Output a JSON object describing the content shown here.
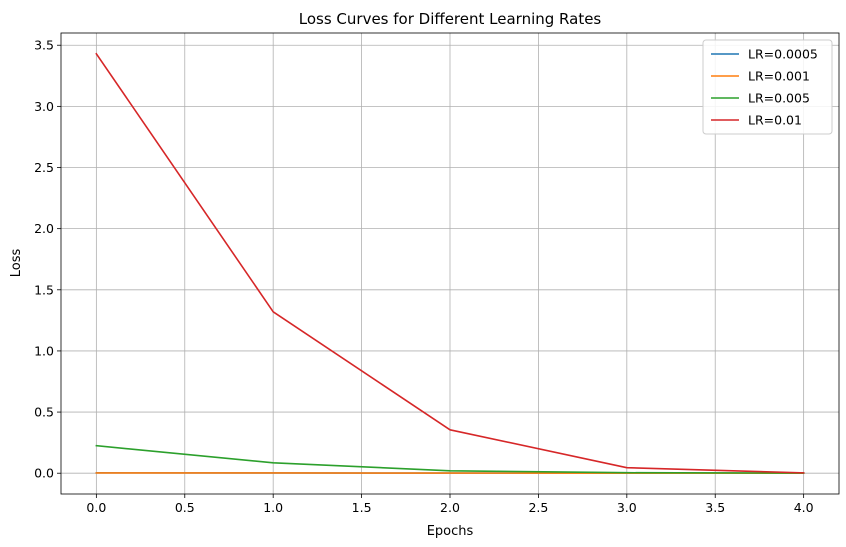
{
  "chart_data": {
    "type": "line",
    "title": "Loss Curves for Different Learning Rates",
    "xlabel": "Epochs",
    "ylabel": "Loss",
    "x": [
      0,
      1,
      2,
      3,
      4
    ],
    "xlim": [
      -0.2,
      4.2
    ],
    "ylim": [
      -0.17,
      3.6
    ],
    "xticks": [
      0.0,
      0.5,
      1.0,
      1.5,
      2.0,
      2.5,
      3.0,
      3.5,
      4.0
    ],
    "xtick_labels": [
      "0.0",
      "0.5",
      "1.0",
      "1.5",
      "2.0",
      "2.5",
      "3.0",
      "3.5",
      "4.0"
    ],
    "yticks": [
      0.0,
      0.5,
      1.0,
      1.5,
      2.0,
      2.5,
      3.0,
      3.5
    ],
    "ytick_labels": [
      "0.0",
      "0.5",
      "1.0",
      "1.5",
      "2.0",
      "2.5",
      "3.0",
      "3.5"
    ],
    "grid": true,
    "legend_position": "top-right",
    "series": [
      {
        "name": "LR=0.0005",
        "color": "#1f77b4",
        "values": [
          0.003,
          0.002,
          0.001,
          0.001,
          0.0
        ]
      },
      {
        "name": "LR=0.001",
        "color": "#ff7f0e",
        "values": [
          0.002,
          0.002,
          0.001,
          0.0,
          0.0
        ]
      },
      {
        "name": "LR=0.005",
        "color": "#2ca02c",
        "values": [
          0.225,
          0.085,
          0.02,
          0.004,
          0.001
        ]
      },
      {
        "name": "LR=0.01",
        "color": "#d62728",
        "values": [
          3.43,
          1.32,
          0.355,
          0.045,
          0.003
        ]
      }
    ]
  }
}
